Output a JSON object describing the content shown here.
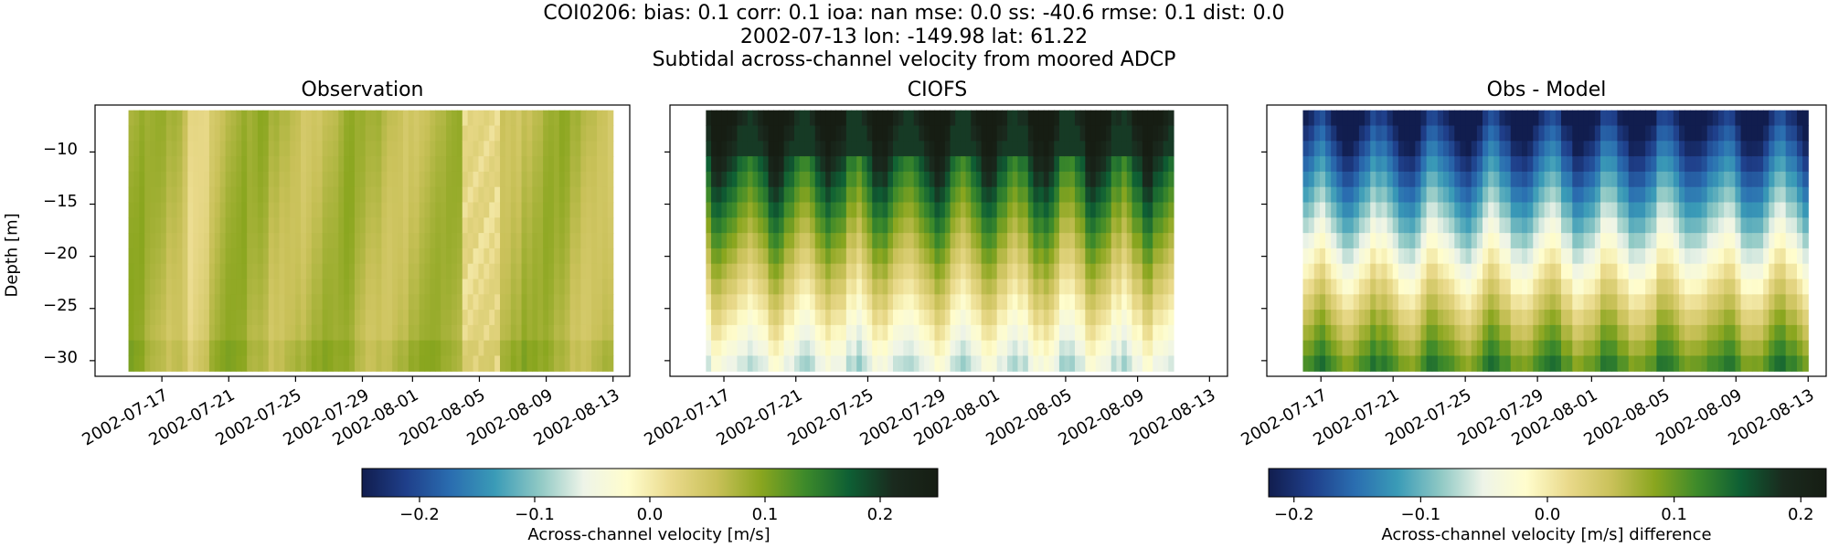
{
  "header": {
    "line1": "COI0206: bias: 0.1  corr: 0.1  ioa: nan  mse: 0.0  ss: -40.6  rmse: 0.1  dist: 0.0",
    "line2": "2002-07-13 lon: -149.98 lat: 61.22",
    "line3": "Subtidal across-channel velocity from moored ADCP"
  },
  "colormap": {
    "name": "cmocean-delta",
    "stops": [
      "#111d4e",
      "#1f3f8a",
      "#2a6db0",
      "#3a9bb7",
      "#8ec8c4",
      "#eef4e8",
      "#fffdcd",
      "#e9d98a",
      "#c9c159",
      "#8aa61f",
      "#3d8a2a",
      "#0e5f34",
      "#1a2a1e",
      "#161d13"
    ]
  },
  "chart_data": [
    {
      "type": "heatmap",
      "title": "Observation",
      "ylabel": "Depth [m]",
      "x": [
        "2002-07-15",
        "2002-08-13"
      ],
      "y": [
        -6,
        -31
      ],
      "xticks": [
        "2002-07-17",
        "2002-07-21",
        "2002-07-25",
        "2002-07-29",
        "2002-08-01",
        "2002-08-05",
        "2002-08-09",
        "2002-08-13"
      ],
      "yticks": [
        "−10",
        "−15",
        "−20",
        "−25",
        "−30"
      ],
      "ylim": [
        -31.5,
        -5.5
      ],
      "vmin": -0.25,
      "vmax": 0.25,
      "pattern": "observation",
      "values": "approx. 0.04–0.10 m/s throughout, light near-zero band around 2002-08-05"
    },
    {
      "type": "heatmap",
      "title": "CIOFS",
      "x": [
        "2002-07-16",
        "2002-08-11"
      ],
      "y": [
        -6,
        -31
      ],
      "xticks": [
        "2002-07-17",
        "2002-07-21",
        "2002-07-25",
        "2002-07-29",
        "2002-08-01",
        "2002-08-05",
        "2002-08-09",
        "2002-08-13"
      ],
      "ylim": [
        -31.5,
        -5.5
      ],
      "vmin": -0.25,
      "vmax": 0.25,
      "pattern": "model",
      "values": "approx. 0.25 m/s near surface decreasing to about -0.03 m/s at -31 m"
    },
    {
      "type": "heatmap",
      "title": "Obs - Model",
      "x": [
        "2002-07-16",
        "2002-08-13"
      ],
      "y": [
        -6,
        -31
      ],
      "xticks": [
        "2002-07-17",
        "2002-07-21",
        "2002-07-25",
        "2002-07-29",
        "2002-08-01",
        "2002-08-05",
        "2002-08-09",
        "2002-08-13"
      ],
      "ylim": [
        -31.5,
        -5.5
      ],
      "vmin": -0.22,
      "vmax": 0.22,
      "pattern": "difference",
      "values": "approx. -0.2 m/s near surface increasing to about +0.1 m/s at -31 m"
    }
  ],
  "colorbars": [
    {
      "label": "Across-channel velocity [m/s]",
      "ticks": [
        "−0.2",
        "−0.1",
        "0.0",
        "0.1",
        "0.2"
      ],
      "tick_values": [
        -0.2,
        -0.1,
        0.0,
        0.1,
        0.2
      ],
      "vmin": -0.25,
      "vmax": 0.25
    },
    {
      "label": "Across-channel velocity [m/s] difference",
      "ticks": [
        "−0.2",
        "−0.1",
        "0.0",
        "0.1",
        "0.2"
      ],
      "tick_values": [
        -0.2,
        -0.1,
        0.0,
        0.1,
        0.2
      ],
      "vmin": -0.22,
      "vmax": 0.22
    }
  ]
}
